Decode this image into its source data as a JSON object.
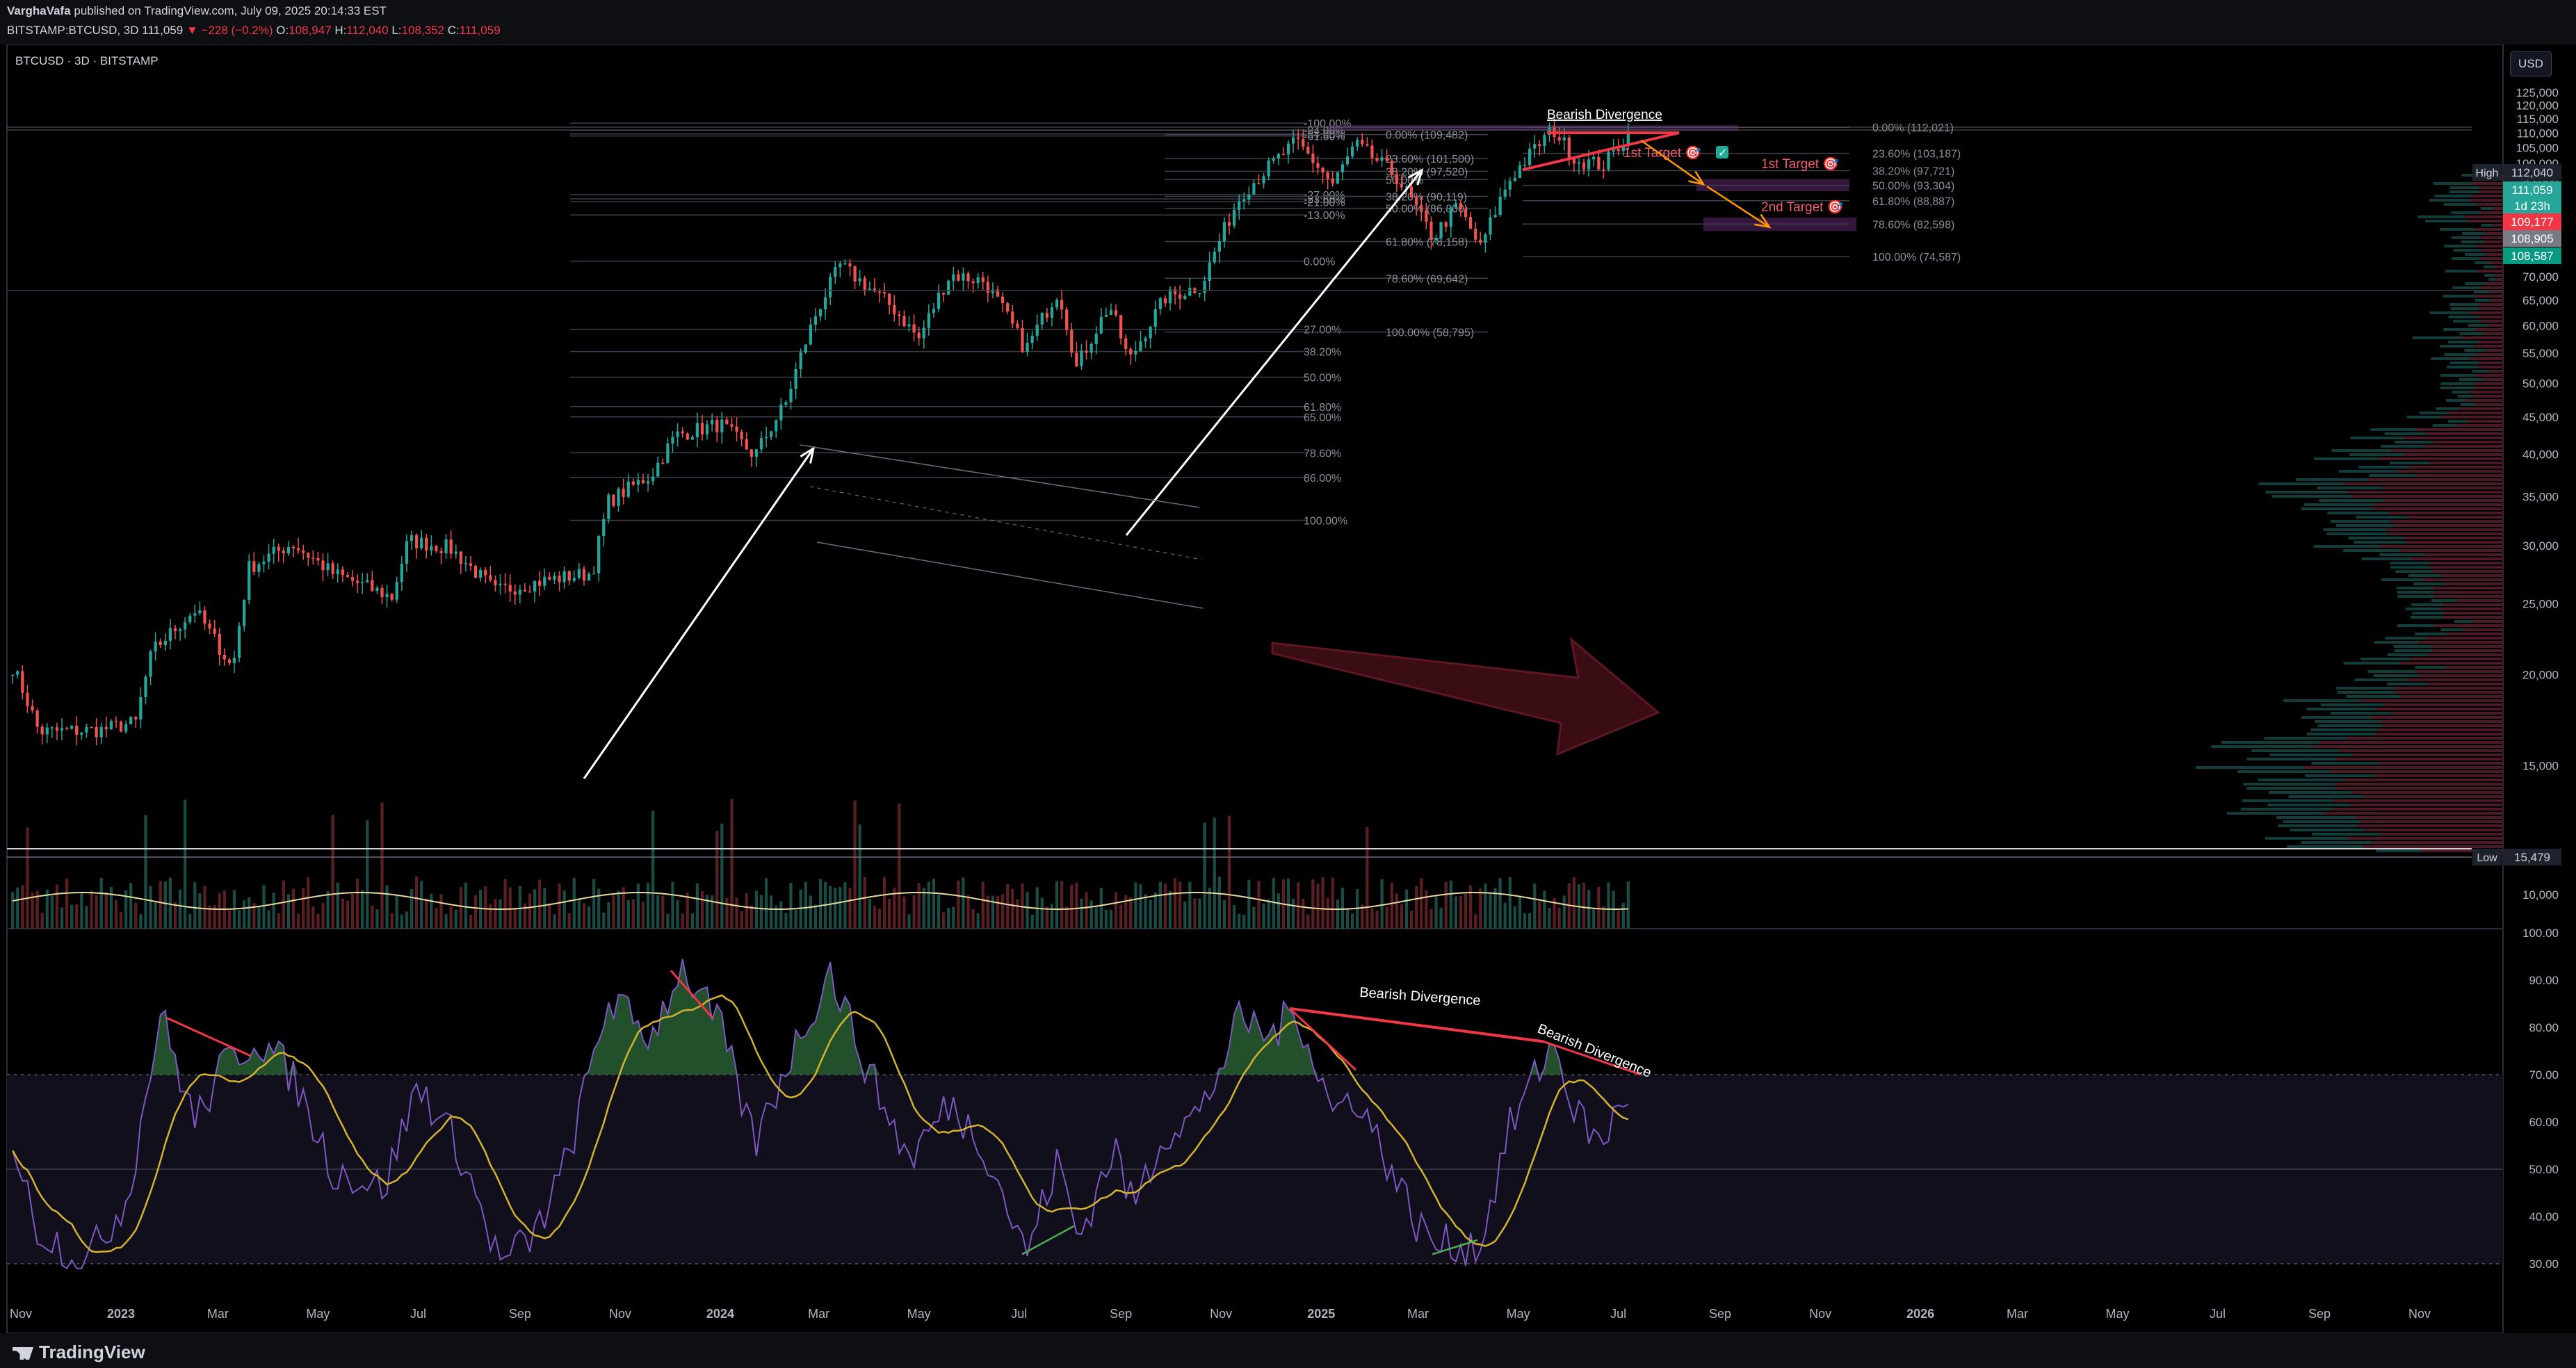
{
  "header": {
    "author": "VarghaVafa",
    "published": " published on TradingView.com, July 09, 2025 20:14:33 EST",
    "symbol": "BITSTAMP:BTCUSD, 3D",
    "last": "111,059",
    "change": "−228 (−0.2%)",
    "o_label": "O:",
    "o": "108,947",
    "h_label": "H:",
    "h": "112,040",
    "l_label": "L:",
    "l": "108,352",
    "c_label": "C:",
    "c": "111,059"
  },
  "chart_title": "BTCUSD · 3D · BITSTAMP",
  "currency_button": "USD",
  "footer": {
    "logo": "TradingView"
  },
  "colors": {
    "up": "#26a69a",
    "down": "#ef5350",
    "rsi": "#7e57c2",
    "rsi_ma": "#d4b330",
    "annotation_red": "#f23645",
    "arrow_orange": "#ff9800",
    "fib_line": "#4a4d57"
  },
  "chart_data": [
    {
      "type": "candlestick",
      "series_name": "BTCUSD",
      "y_scale": "log",
      "ylim": [
        9000,
        130000
      ],
      "y_ticks": [
        "125,000",
        "120,000",
        "115,000",
        "110,000",
        "105,000",
        "100,000",
        "95,000",
        "90,000",
        "85,000",
        "80,000",
        "75,000",
        "70,000",
        "65,000",
        "60,000",
        "55,000",
        "50,000",
        "45,000",
        "40,000",
        "35,000",
        "30,000",
        "25,000",
        "20,000",
        "15,000",
        "10,000"
      ],
      "y_tick_values": [
        125000,
        120000,
        115000,
        110000,
        105000,
        100000,
        95000,
        90000,
        85000,
        80000,
        75000,
        70000,
        65000,
        60000,
        55000,
        50000,
        45000,
        40000,
        35000,
        30000,
        25000,
        20000,
        15000,
        10000
      ],
      "x_ticks": [
        "Nov",
        "2023",
        "Mar",
        "May",
        "Jul",
        "Sep",
        "Nov",
        "2024",
        "Mar",
        "May",
        "Jul",
        "Sep",
        "Nov",
        "2025",
        "Mar",
        "May",
        "Jul",
        "Sep",
        "Nov",
        "2026",
        "Mar",
        "May",
        "Jul",
        "Sep",
        "Nov"
      ],
      "x_tick_dates": [
        "2022-11-01",
        "2023-01-01",
        "2023-03-01",
        "2023-05-01",
        "2023-07-01",
        "2023-09-01",
        "2023-11-01",
        "2024-01-01",
        "2024-03-01",
        "2024-05-01",
        "2024-07-01",
        "2024-09-01",
        "2024-11-01",
        "2025-01-01",
        "2025-03-01",
        "2025-05-01",
        "2025-07-01",
        "2025-09-01",
        "2025-11-01",
        "2026-01-01",
        "2026-03-01",
        "2026-05-01",
        "2026-07-01",
        "2026-09-01",
        "2026-11-01"
      ],
      "x_range": [
        "2022-10-27",
        "2026-12-01"
      ],
      "close_path": [
        [
          "2022-10-27",
          20500
        ],
        [
          "2022-11-12",
          16700
        ],
        [
          "2022-12-20",
          16800
        ],
        [
          "2023-01-10",
          17200
        ],
        [
          "2023-01-20",
          21500
        ],
        [
          "2023-02-15",
          24500
        ],
        [
          "2023-03-10",
          20300
        ],
        [
          "2023-03-20",
          28000
        ],
        [
          "2023-04-15",
          30200
        ],
        [
          "2023-05-10",
          27500
        ],
        [
          "2023-06-15",
          25500
        ],
        [
          "2023-06-25",
          30500
        ],
        [
          "2023-07-20",
          29800
        ],
        [
          "2023-08-17",
          26000
        ],
        [
          "2023-09-20",
          27000
        ],
        [
          "2023-10-15",
          27500
        ],
        [
          "2023-10-25",
          34500
        ],
        [
          "2023-11-20",
          37500
        ],
        [
          "2023-12-05",
          42500
        ],
        [
          "2024-01-01",
          44000
        ],
        [
          "2024-01-22",
          39800
        ],
        [
          "2024-02-10",
          47000
        ],
        [
          "2024-02-28",
          62000
        ],
        [
          "2024-03-14",
          72500
        ],
        [
          "2024-04-15",
          63500
        ],
        [
          "2024-05-01",
          57500
        ],
        [
          "2024-05-20",
          70500
        ],
        [
          "2024-06-10",
          69000
        ],
        [
          "2024-07-05",
          55500
        ],
        [
          "2024-07-25",
          67000
        ],
        [
          "2024-08-05",
          52500
        ],
        [
          "2024-08-25",
          64000
        ],
        [
          "2024-09-06",
          53500
        ],
        [
          "2024-09-28",
          65500
        ],
        [
          "2024-10-20",
          68000
        ],
        [
          "2024-11-13",
          90500
        ],
        [
          "2024-12-17",
          107000
        ],
        [
          "2025-01-08",
          93500
        ],
        [
          "2025-01-22",
          106000
        ],
        [
          "2025-02-15",
          96500
        ],
        [
          "2025-03-10",
          79000
        ],
        [
          "2025-03-25",
          87500
        ],
        [
          "2025-04-08",
          76500
        ],
        [
          "2025-04-25",
          94500
        ],
        [
          "2025-05-22",
          111500
        ],
        [
          "2025-06-05",
          101000
        ],
        [
          "2025-06-22",
          99500
        ],
        [
          "2025-07-09",
          111059
        ]
      ],
      "high": "112,040",
      "low": "15,479",
      "price_labels": [
        "111,059",
        "1d 23h",
        "109,177",
        "108,905",
        "108,587"
      ],
      "high_label": "High",
      "low_label": "Low",
      "fib_sets": [
        {
          "levels": [
            "-100.00%",
            "-84.00%",
            "-64.00%",
            "-61.80%",
            "-27.00%",
            "-23.60%",
            "-21.00%",
            "-13.00%",
            "0.00%",
            "27.00%",
            "38.20%",
            "50.00%",
            "61.80%",
            "65.00%",
            "78.60%",
            "86.00%",
            "100.00%"
          ],
          "prices": [
            113500,
            111000,
            109700,
            109000,
            90600,
            89400,
            88600,
            85000,
            73500,
            59300,
            55300,
            51000,
            46500,
            45000,
            40200,
            37200,
            32500
          ]
        },
        {
          "levels": [
            "0.00% (109,482)",
            "23.60% (101,500)",
            "38.20% (97,520)",
            "50.00%",
            "38.20% (90,119)",
            "50.00% (86,800)",
            "61.80% (78,158)",
            "78.60% (69,642)",
            "100.00% (58,795)"
          ],
          "prices": [
            109482,
            101500,
            97520,
            95000,
            90119,
            86800,
            78158,
            69642,
            58795
          ]
        },
        {
          "levels": [
            "0.00% (112,021)",
            "23.60% (103,187)",
            "38.20% (97,721)",
            "50.00% (93,304)",
            "61.80% (88,887)",
            "78.60% (82,598)",
            "100.00% (74,587)"
          ],
          "prices": [
            112021,
            103187,
            97721,
            93304,
            88887,
            82598,
            74587
          ]
        }
      ],
      "annotations": [
        "1st Target 🎯",
        "✓",
        "Bearish Divergence",
        "1st Target 🎯",
        "2nd Target 🎯"
      ]
    },
    {
      "type": "line",
      "series_name": "RSI",
      "ylim": [
        28,
        100
      ],
      "y_ticks": [
        "100.00",
        "90.00",
        "80.00",
        "70.00",
        "60.00",
        "50.00",
        "40.00",
        "30.00"
      ],
      "y_tick_values": [
        100,
        90,
        80,
        70,
        60,
        50,
        40,
        30
      ],
      "bands": [
        30,
        70
      ],
      "rsi_path": [
        [
          "2022-10-27",
          56
        ],
        [
          "2022-11-10",
          38
        ],
        [
          "2022-12-10",
          30
        ],
        [
          "2023-01-05",
          44
        ],
        [
          "2023-01-25",
          83
        ],
        [
          "2023-02-15",
          60
        ],
        [
          "2023-03-05",
          72
        ],
        [
          "2023-03-25",
          78
        ],
        [
          "2023-04-15",
          70
        ],
        [
          "2023-05-10",
          50
        ],
        [
          "2023-06-10",
          46
        ],
        [
          "2023-07-01",
          68
        ],
        [
          "2023-07-25",
          55
        ],
        [
          "2023-08-20",
          30
        ],
        [
          "2023-09-10",
          36
        ],
        [
          "2023-09-30",
          52
        ],
        [
          "2023-10-25",
          86
        ],
        [
          "2023-11-20",
          78
        ],
        [
          "2023-12-08",
          93
        ],
        [
          "2024-01-01",
          80
        ],
        [
          "2024-01-22",
          55
        ],
        [
          "2024-02-10",
          72
        ],
        [
          "2024-03-08",
          92
        ],
        [
          "2024-04-01",
          70
        ],
        [
          "2024-04-25",
          52
        ],
        [
          "2024-05-20",
          64
        ],
        [
          "2024-06-10",
          55
        ],
        [
          "2024-07-05",
          32
        ],
        [
          "2024-07-25",
          52
        ],
        [
          "2024-08-06",
          35
        ],
        [
          "2024-08-28",
          55
        ],
        [
          "2024-09-08",
          42
        ],
        [
          "2024-09-28",
          58
        ],
        [
          "2024-10-20",
          62
        ],
        [
          "2024-11-13",
          82
        ],
        [
          "2024-12-01",
          78
        ],
        [
          "2024-12-17",
          84
        ],
        [
          "2025-01-08",
          62
        ],
        [
          "2025-01-22",
          66
        ],
        [
          "2025-02-10",
          52
        ],
        [
          "2025-03-01",
          38
        ],
        [
          "2025-03-12",
          34
        ],
        [
          "2025-04-08",
          34
        ],
        [
          "2025-04-25",
          58
        ],
        [
          "2025-05-22",
          77
        ],
        [
          "2025-06-05",
          62
        ],
        [
          "2025-06-20",
          55
        ],
        [
          "2025-07-09",
          68
        ]
      ],
      "annotations": [
        "Bearish Divergence",
        "Bearish Divergence"
      ]
    }
  ]
}
